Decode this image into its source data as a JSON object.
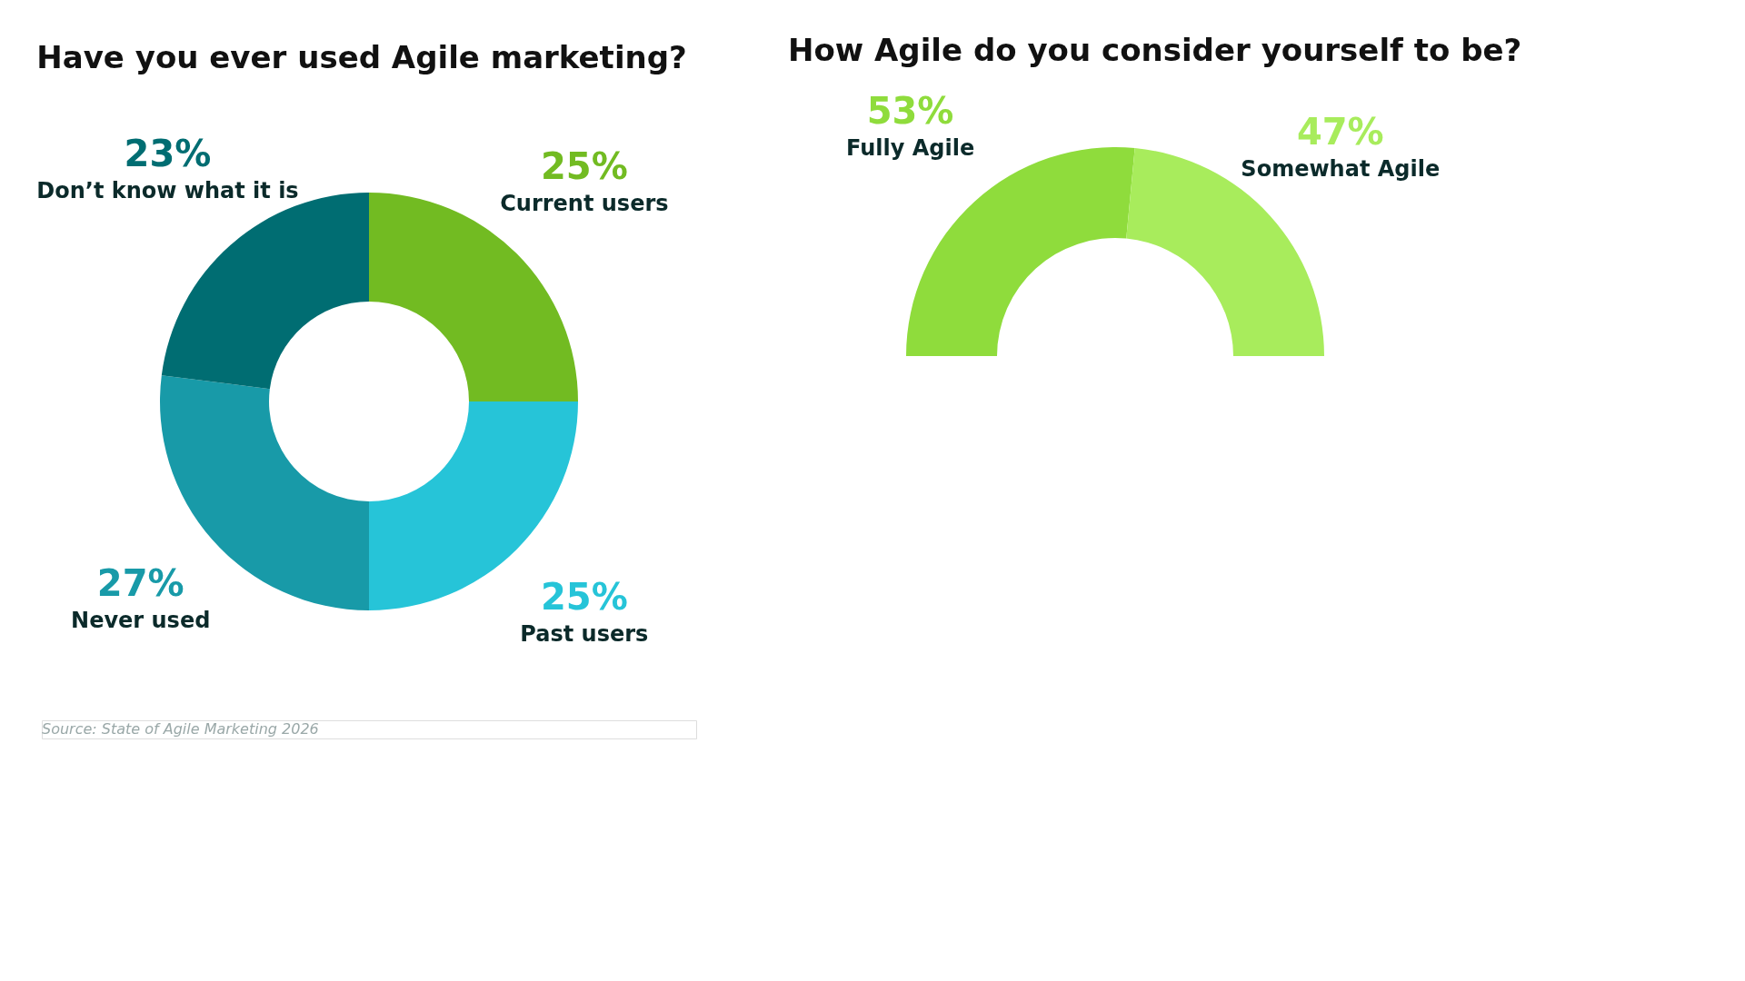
{
  "chart_data": [
    {
      "type": "donut",
      "title": "Have you ever used Agile marketing?",
      "categories": [
        "Current users",
        "Past users",
        "Never used",
        "Don’t know what it is"
      ],
      "values": [
        25,
        25,
        27,
        23
      ],
      "colors": [
        "#72bb22",
        "#26c4d8",
        "#189aa8",
        "#006d72"
      ],
      "value_labels": [
        "25%",
        "25%",
        "27%",
        "23%"
      ],
      "annotations": [
        "Source: State of Agile Marketing 2026"
      ]
    },
    {
      "type": "donut",
      "title": "How Agile do you consider yourself to be?",
      "categories": [
        "Fully Agile",
        "Somewhat Agile"
      ],
      "values": [
        53,
        47
      ],
      "colors": [
        "#8fdc3c",
        "#a8ec5c"
      ],
      "value_labels": [
        "53%",
        "47%"
      ]
    }
  ]
}
